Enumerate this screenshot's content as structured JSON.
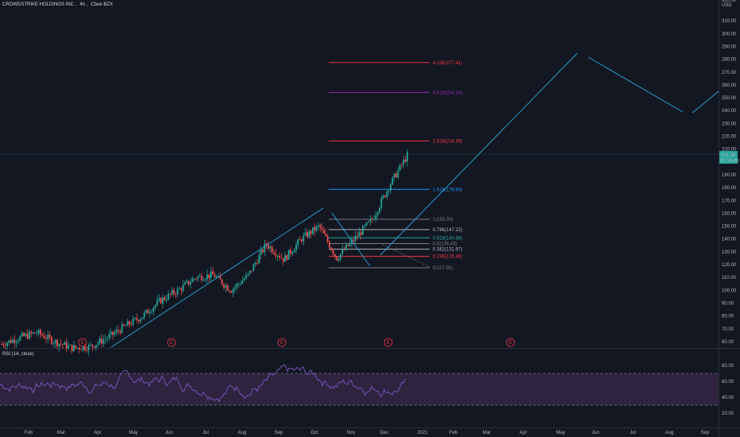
{
  "header": {
    "symbol": "CROWDSTRIKE HOLDINGS INC",
    "interval": "4h",
    "exchange": "Cboe BZX"
  },
  "currency_top": "USD",
  "currency_prefix": "320.00",
  "rsi_label": "RSI (14, close)",
  "colors": {
    "background": "#131722",
    "up": "#26a69a",
    "down": "#ef5350",
    "trend": "#2aa8d9",
    "fib_red": "#f23645",
    "fib_purple": "#9c27b0",
    "fib_blue": "#2196f3",
    "rsi_line": "#7e57c2",
    "rsi_band": "#2e2440",
    "price_tag": "#26a69a"
  },
  "chart_data": [
    {
      "type": "candlestick",
      "title": "CROWDSTRIKE HOLDINGS INC, 4h, Cboe BZX",
      "x_tick_labels": [
        "Feb",
        "Mar",
        "Apr",
        "May",
        "Jun",
        "Jul",
        "Aug",
        "Sep",
        "Oct",
        "Nov",
        "Dec",
        "2021",
        "Feb",
        "Mar",
        "Apr",
        "May",
        "Jun",
        "Jul",
        "Aug",
        "Sep"
      ],
      "y_tick_labels": [
        60,
        70,
        80,
        90,
        100,
        110,
        120,
        130,
        140,
        150,
        160,
        170,
        180,
        190,
        200,
        210,
        220,
        230,
        240,
        250,
        260,
        270,
        280,
        290,
        300,
        310
      ],
      "ylim": [
        55,
        320
      ],
      "price_path": [
        {
          "x": "Jan 2020",
          "y": 58
        },
        {
          "x": "Feb",
          "y": 63
        },
        {
          "x": "Feb mid",
          "y": 67
        },
        {
          "x": "Mar",
          "y": 60
        },
        {
          "x": "Mar mid",
          "y": 55
        },
        {
          "x": "Apr",
          "y": 56
        },
        {
          "x": "Apr mid",
          "y": 63
        },
        {
          "x": "May",
          "y": 72
        },
        {
          "x": "May mid",
          "y": 80
        },
        {
          "x": "Jun",
          "y": 92
        },
        {
          "x": "Jun mid",
          "y": 100
        },
        {
          "x": "Jul",
          "y": 110
        },
        {
          "x": "Jul mid",
          "y": 112
        },
        {
          "x": "Aug",
          "y": 100
        },
        {
          "x": "Aug mid",
          "y": 112
        },
        {
          "x": "Sep",
          "y": 136
        },
        {
          "x": "Sep mid",
          "y": 124
        },
        {
          "x": "Oct",
          "y": 140
        },
        {
          "x": "Oct mid",
          "y": 150
        },
        {
          "x": "Nov",
          "y": 125
        },
        {
          "x": "Nov mid",
          "y": 140
        },
        {
          "x": "Dec",
          "y": 155
        },
        {
          "x": "Dec mid",
          "y": 182
        },
        {
          "x": "Dec end",
          "y": 205
        }
      ],
      "current_price": "201.38",
      "current_price_sub": "07:16:49:22",
      "fib_levels": [
        {
          "label": "4.236(277.41)",
          "value": 277.41,
          "color": "#f23645"
        },
        {
          "label": "3.618(254.14)",
          "value": 254.14,
          "color": "#9c27b0"
        },
        {
          "label": "2.618(216.39)",
          "value": 216.39,
          "color": "#f23645"
        },
        {
          "label": "1.618(178.64)",
          "value": 178.64,
          "color": "#2196f3"
        },
        {
          "label": "1(155.30)",
          "value": 155.3,
          "color": "#787b86"
        },
        {
          "label": "0.786(147.22)",
          "value": 147.22,
          "color": "#b2b5be"
        },
        {
          "label": "0.618(140.88)",
          "value": 140.88,
          "color": "#26a69a"
        },
        {
          "label": "0.5(136.43)",
          "value": 136.43,
          "color": "#787b86"
        },
        {
          "label": "0.382(131.97)",
          "value": 131.97,
          "color": "#b2b5be"
        },
        {
          "label": "0.236(126.46)",
          "value": 126.46,
          "color": "#f23645"
        },
        {
          "label": "0(117.55)",
          "value": 117.55,
          "color": "#787b86"
        }
      ],
      "earnings_markers": [
        "E",
        "E",
        "E",
        "E",
        "E",
        "E"
      ]
    },
    {
      "type": "line",
      "title": "RSI (14, close)",
      "y_tick_labels": [
        20,
        40,
        60,
        80
      ],
      "ylim": [
        10,
        90
      ],
      "bands": [
        30,
        70
      ]
    }
  ]
}
